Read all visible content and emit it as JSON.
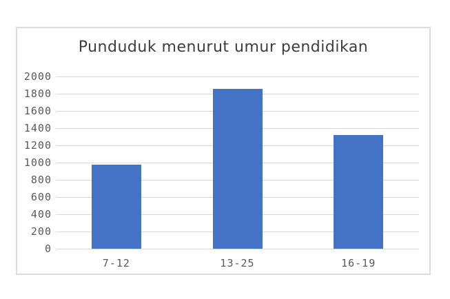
{
  "page": {
    "background": "#FFFFFF"
  },
  "chart_data": {
    "type": "bar",
    "title": "Punduduk menurut umur pendidikan",
    "categories": [
      "7-12",
      "13-25",
      "16-19"
    ],
    "values": [
      980,
      1860,
      1320
    ],
    "xlabel": "",
    "ylabel": "",
    "ylim": [
      0,
      2000
    ],
    "ytick_step": 200,
    "yticks": [
      0,
      200,
      400,
      600,
      800,
      1000,
      1200,
      1400,
      1600,
      1800,
      2000
    ],
    "grid": "horizontal",
    "legend": "none",
    "colors": {
      "bar": "#4472C4",
      "gridline": "#D8D8D8",
      "tick_label": "#595959",
      "title": "#3D3D3D",
      "frame_border": "#DCDCDC",
      "background": "#FFFFFF"
    }
  }
}
